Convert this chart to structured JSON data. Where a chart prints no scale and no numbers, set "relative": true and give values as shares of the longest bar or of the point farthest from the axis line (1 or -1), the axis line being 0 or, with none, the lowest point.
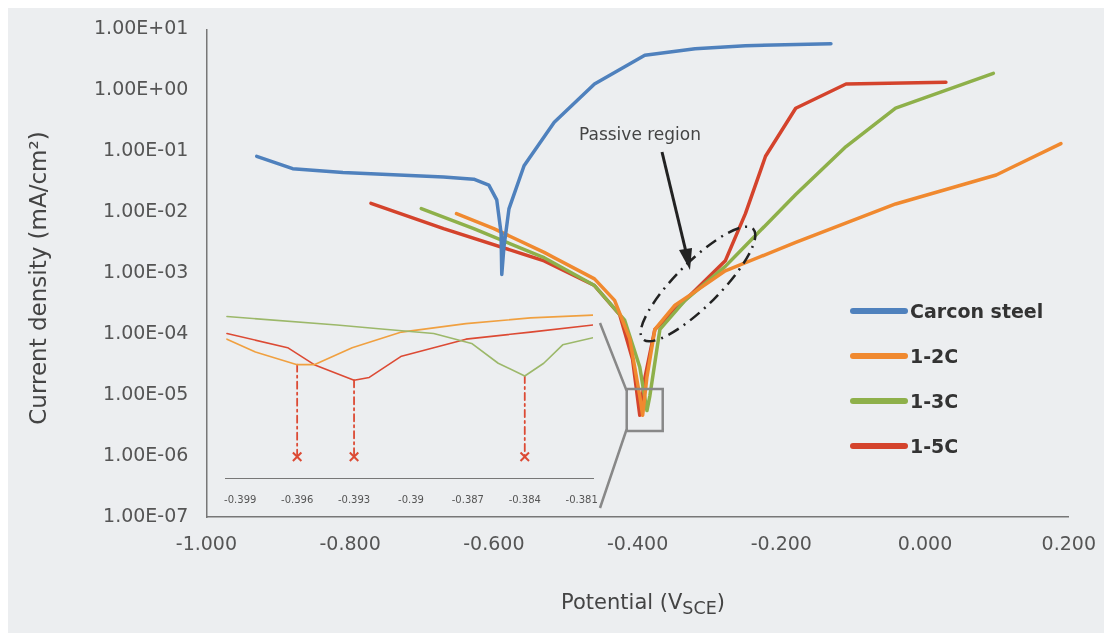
{
  "chart_data": [
    {
      "type": "line",
      "xlabel": "Potential (V$_{SCE}$)",
      "ylabel": "Current density (mA/cm²)",
      "log": "y",
      "legend": "right",
      "grid": false,
      "marker": "none",
      "line_style": "solid",
      "xlim": [
        -1.0,
        0.2
      ],
      "xticks": [
        {
          "value": -1.0,
          "label": "-1.000"
        },
        {
          "value": -0.8,
          "label": "-0.800"
        },
        {
          "value": -0.6,
          "label": "-0.600"
        },
        {
          "value": -0.4,
          "label": "-0.400"
        },
        {
          "value": -0.2,
          "label": "-0.200"
        },
        {
          "value": 0,
          "label": "0.000"
        },
        {
          "value": 0.2,
          "label": "0.200"
        }
      ],
      "ylim": [
        1e-07,
        10
      ],
      "yticks": [
        {
          "value": 1e-07,
          "label": "1.00E-07"
        },
        {
          "value": 1e-06,
          "label": "1.00E-06"
        },
        {
          "value": 1e-05,
          "label": "1.00E-05"
        },
        {
          "value": 0.0001,
          "label": "1.00E-04"
        },
        {
          "value": 0.001,
          "label": "1.00E-03"
        },
        {
          "value": 0.01,
          "label": "1.00E-02"
        },
        {
          "value": 0.1,
          "label": "1.00E-01"
        },
        {
          "value": 1,
          "label": "1.00E+00"
        },
        {
          "value": 10,
          "label": "1.00E+01"
        }
      ],
      "annotations": [
        "Passive region"
      ],
      "series": [
        {
          "name": "Carcon steel",
          "color": "#4f81bd",
          "x": [
            -0.93,
            -0.88,
            -0.81,
            -0.67,
            -0.628,
            -0.607,
            -0.596,
            -0.59,
            -0.589,
            -0.586,
            -0.579,
            -0.558,
            -0.516,
            -0.46,
            -0.39,
            -0.32,
            -0.25,
            -0.131
          ],
          "values": [
            0.083,
            0.052,
            0.045,
            0.038,
            0.035,
            0.028,
            0.016,
            0.0046,
            0.00096,
            0.0027,
            0.0114,
            0.058,
            0.3,
            1.27,
            3.76,
            4.8,
            5.4,
            5.8
          ]
        },
        {
          "name": "1-2C",
          "color": "#f0892f",
          "x": [
            -0.652,
            -0.6,
            -0.53,
            -0.46,
            -0.432,
            -0.411,
            -0.397,
            -0.393,
            -0.387,
            -0.376,
            -0.348,
            -0.32,
            -0.278,
            -0.18,
            -0.041,
            0.099,
            0.189
          ],
          "values": [
            0.0095,
            0.0054,
            0.0022,
            0.00081,
            0.00036,
            8.5e-05,
            9.7e-06,
            4.7e-06,
            2e-05,
            0.00012,
            0.0003,
            0.0005,
            0.0011,
            0.0032,
            0.0137,
            0.041,
            0.134
          ]
        },
        {
          "name": "1-3C",
          "color": "#8eb04a",
          "x": [
            -0.701,
            -0.628,
            -0.53,
            -0.46,
            -0.418,
            -0.397,
            -0.387,
            -0.383,
            -0.369,
            -0.334,
            -0.278,
            -0.18,
            -0.11,
            -0.041,
            0.095
          ],
          "values": [
            0.0115,
            0.0054,
            0.0018,
            0.00063,
            0.00017,
            2.9e-05,
            5.6e-06,
            9.7e-06,
            0.00012,
            0.00036,
            0.0013,
            0.0196,
            0.12,
            0.51,
            1.9
          ]
        },
        {
          "name": "1-5C",
          "color": "#d4432c",
          "x": [
            -0.771,
            -0.67,
            -0.53,
            -0.46,
            -0.425,
            -0.407,
            -0.397,
            -0.39,
            -0.376,
            -0.334,
            -0.278,
            -0.25,
            -0.222,
            -0.18,
            -0.11,
            0.029
          ],
          "values": [
            0.014,
            0.0054,
            0.0016,
            0.00063,
            0.00021,
            3.9e-05,
            4.7e-06,
            1.9e-05,
            0.00012,
            0.00036,
            0.0016,
            0.0095,
            0.083,
            0.51,
            1.27,
            1.36
          ]
        }
      ]
    },
    {
      "type": "line",
      "relative": true,
      "tick_labels": "x",
      "grid": false,
      "marker": "none",
      "line_style": "solid",
      "xlim": [
        -0.3998,
        -0.3804
      ],
      "xticks": [
        {
          "value": -0.399,
          "label": "-0.399"
        },
        -0.396,
        -0.393,
        -0.39,
        -0.387,
        -0.384,
        -0.381
      ],
      "series": [
        {
          "color": "#9cb86a",
          "x": [
            -0.3997,
            -0.3939,
            -0.3914,
            -0.3888,
            -0.3868,
            -0.3854,
            -0.384,
            -0.383,
            -0.382,
            -0.3804
          ],
          "values": [
            0.99,
            0.93,
            0.9,
            0.87,
            0.8,
            0.66,
            0.57,
            0.66,
            0.79,
            0.84
          ]
        },
        {
          "color": "#f0a040",
          "x": [
            -0.3997,
            -0.3982,
            -0.396,
            -0.3951,
            -0.3931,
            -0.3905,
            -0.3871,
            -0.3837,
            -0.3804
          ],
          "values": [
            0.83,
            0.74,
            0.65,
            0.65,
            0.77,
            0.88,
            0.94,
            0.98,
            1.0
          ]
        },
        {
          "color": "#dc4a34",
          "x": [
            -0.3997,
            -0.3965,
            -0.3951,
            -0.393,
            -0.3922,
            -0.3905,
            -0.3871,
            -0.3837,
            -0.3804
          ],
          "values": [
            0.87,
            0.77,
            0.65,
            0.54,
            0.56,
            0.71,
            0.83,
            0.88,
            0.93
          ]
        },
        {
          "color": "#dc4a34",
          "type": "line",
          "line_style": "dashed",
          "x": [
            -0.396,
            -0.396
          ],
          "values": [
            0.65,
            0
          ]
        },
        {
          "color": "#dc4a34",
          "type": "line",
          "line_style": "dashed",
          "x": [
            -0.393,
            -0.393
          ],
          "values": [
            0.54,
            0
          ]
        },
        {
          "color": "#dc4a34",
          "type": "line",
          "line_style": "dashed",
          "x": [
            -0.384,
            -0.384
          ],
          "values": [
            0.57,
            0
          ]
        },
        {
          "color": "#dc4a34",
          "type": "scatter",
          "marker": "cross",
          "x": [
            -0.396,
            -0.393,
            -0.384
          ],
          "values": [
            0,
            0,
            0
          ]
        }
      ]
    }
  ]
}
